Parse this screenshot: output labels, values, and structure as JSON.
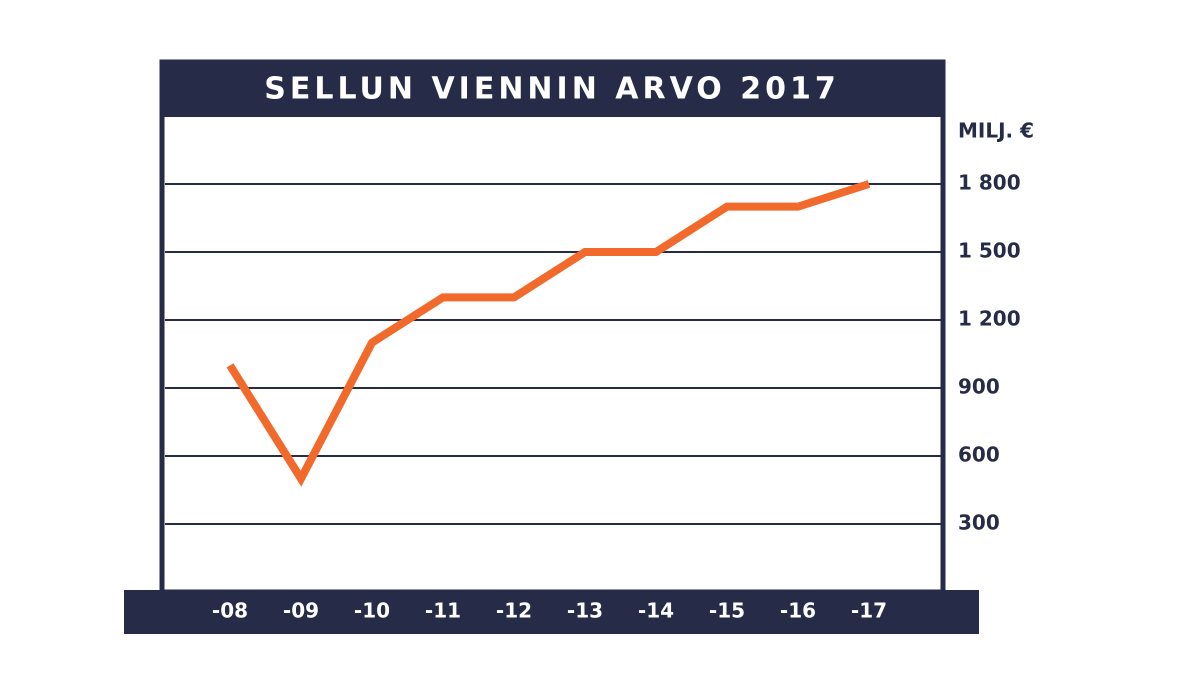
{
  "chart_data": {
    "type": "line",
    "title": "SELLUN VIENNIN ARVO 2017",
    "y_axis_label": "MILJ. €",
    "categories": [
      "-08",
      "-09",
      "-10",
      "-11",
      "-12",
      "-13",
      "-14",
      "-15",
      "-16",
      "-17"
    ],
    "series": [
      {
        "name": "Sellun viennin arvo",
        "color": "#f26a2b",
        "values": [
          1000,
          500,
          1100,
          1300,
          1300,
          1500,
          1500,
          1700,
          1700,
          1800
        ]
      }
    ],
    "ylim": [
      0,
      2100
    ],
    "yticks": [
      {
        "value": 1800,
        "label": "1 800"
      },
      {
        "value": 1500,
        "label": "1 500"
      },
      {
        "value": 1200,
        "label": "1 200"
      },
      900,
      600,
      300
    ],
    "grid": true,
    "frame_color": "#262c48"
  }
}
